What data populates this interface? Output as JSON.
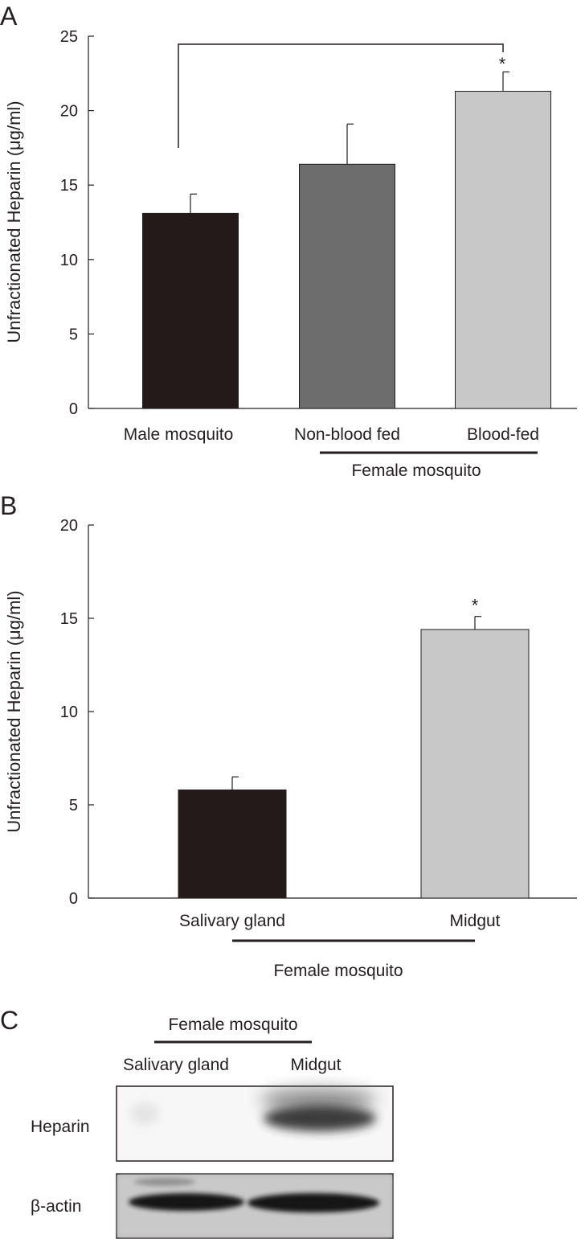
{
  "chart_data": [
    {
      "panel": "A",
      "type": "bar",
      "ylabel": "Unfractionated Heparin (μg/ml)",
      "ylim": [
        0,
        25
      ],
      "yticks": [
        0,
        5,
        10,
        15,
        20,
        25
      ],
      "categories": [
        "Male mosquito",
        "Non-blood fed",
        "Blood-fed"
      ],
      "values": [
        13.1,
        16.4,
        21.3
      ],
      "errors": [
        1.3,
        2.7,
        1.3
      ],
      "colors": [
        "#231a19",
        "#6d6d6d",
        "#c8c8c8"
      ],
      "significance": [
        {
          "from": 0,
          "to": 2,
          "label": "*"
        }
      ],
      "group_label": "Female mosquito",
      "group_categories": [
        1,
        2
      ]
    },
    {
      "panel": "B",
      "type": "bar",
      "ylabel": "Unfractionated Heparin (μg/ml)",
      "ylim": [
        0,
        20
      ],
      "yticks": [
        0,
        5,
        10,
        15,
        20
      ],
      "categories": [
        "Salivary gland",
        "Midgut"
      ],
      "values": [
        5.8,
        14.4
      ],
      "errors": [
        0.7,
        0.7
      ],
      "colors": [
        "#231a19",
        "#c8c8c8"
      ],
      "significance_labels": [
        "",
        "*"
      ],
      "group_label": "Female mosquito"
    }
  ],
  "blot": {
    "panel": "C",
    "group_label": "Female mosquito",
    "lanes": [
      "Salivary gland",
      "Midgut"
    ],
    "rows": [
      {
        "label": "Heparin",
        "intensity": [
          0.05,
          0.8
        ]
      },
      {
        "label": "β-actin",
        "intensity": [
          0.9,
          0.92
        ]
      }
    ]
  }
}
